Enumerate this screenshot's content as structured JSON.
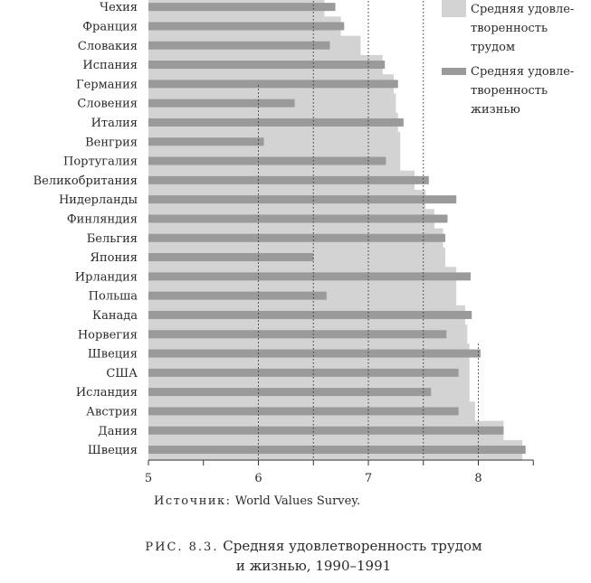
{
  "chart_data": {
    "type": "bar",
    "title": "Средняя удовлетворенность трудом и жизнью, 1990–1991",
    "xlim": [
      5,
      8.5
    ],
    "ticks": [
      5,
      6,
      7,
      8
    ],
    "reference_lines": [
      6,
      6.5,
      7,
      7.5
    ],
    "categories": [
      "Чехия",
      "Франция",
      "Словакия",
      "Испания",
      "Германия",
      "Словения",
      "Италия",
      "Венгрия",
      "Португалия",
      "Великобритания",
      "Нидерланды",
      "Финляндия",
      "Бельгия",
      "Япония",
      "Ирландия",
      "Польша",
      "Канада",
      "Норвегия",
      "Швеция",
      "США",
      "Исландия",
      "Австрия",
      "Дания",
      "Швеция"
    ],
    "series": [
      {
        "name": "Средняя удовлетворенность трудом",
        "values": [
          6.6,
          6.75,
          6.93,
          7.13,
          7.23,
          7.25,
          7.27,
          7.29,
          7.29,
          7.42,
          7.52,
          7.6,
          7.68,
          7.7,
          7.8,
          7.8,
          7.88,
          7.9,
          7.92,
          7.92,
          7.92,
          7.97,
          8.23,
          8.4
        ]
      },
      {
        "name": "Средняя удовлетворенность жизнью",
        "values": [
          6.7,
          6.78,
          6.65,
          7.15,
          7.27,
          6.33,
          7.32,
          6.05,
          7.16,
          7.55,
          7.8,
          7.72,
          7.7,
          6.5,
          7.93,
          6.62,
          7.94,
          7.71,
          8.02,
          7.82,
          7.57,
          7.82,
          8.23,
          8.43
        ]
      }
    ],
    "colors": {
      "work": "#d3d3d3",
      "life": "#9a9a9a"
    }
  },
  "legend": {
    "work_label": "Средняя удовле-\nтворенность\nтрудом",
    "life_label": "Средняя удовле-\nтворенность\nжизнью"
  },
  "source": {
    "lead": "Источник:",
    "text": " World Values Survey."
  },
  "caption": {
    "fig": "РИС. 8.3.",
    "line1": " Средняя удовлетворенность трудом",
    "line2": "и жизнью, 1990–1991"
  }
}
